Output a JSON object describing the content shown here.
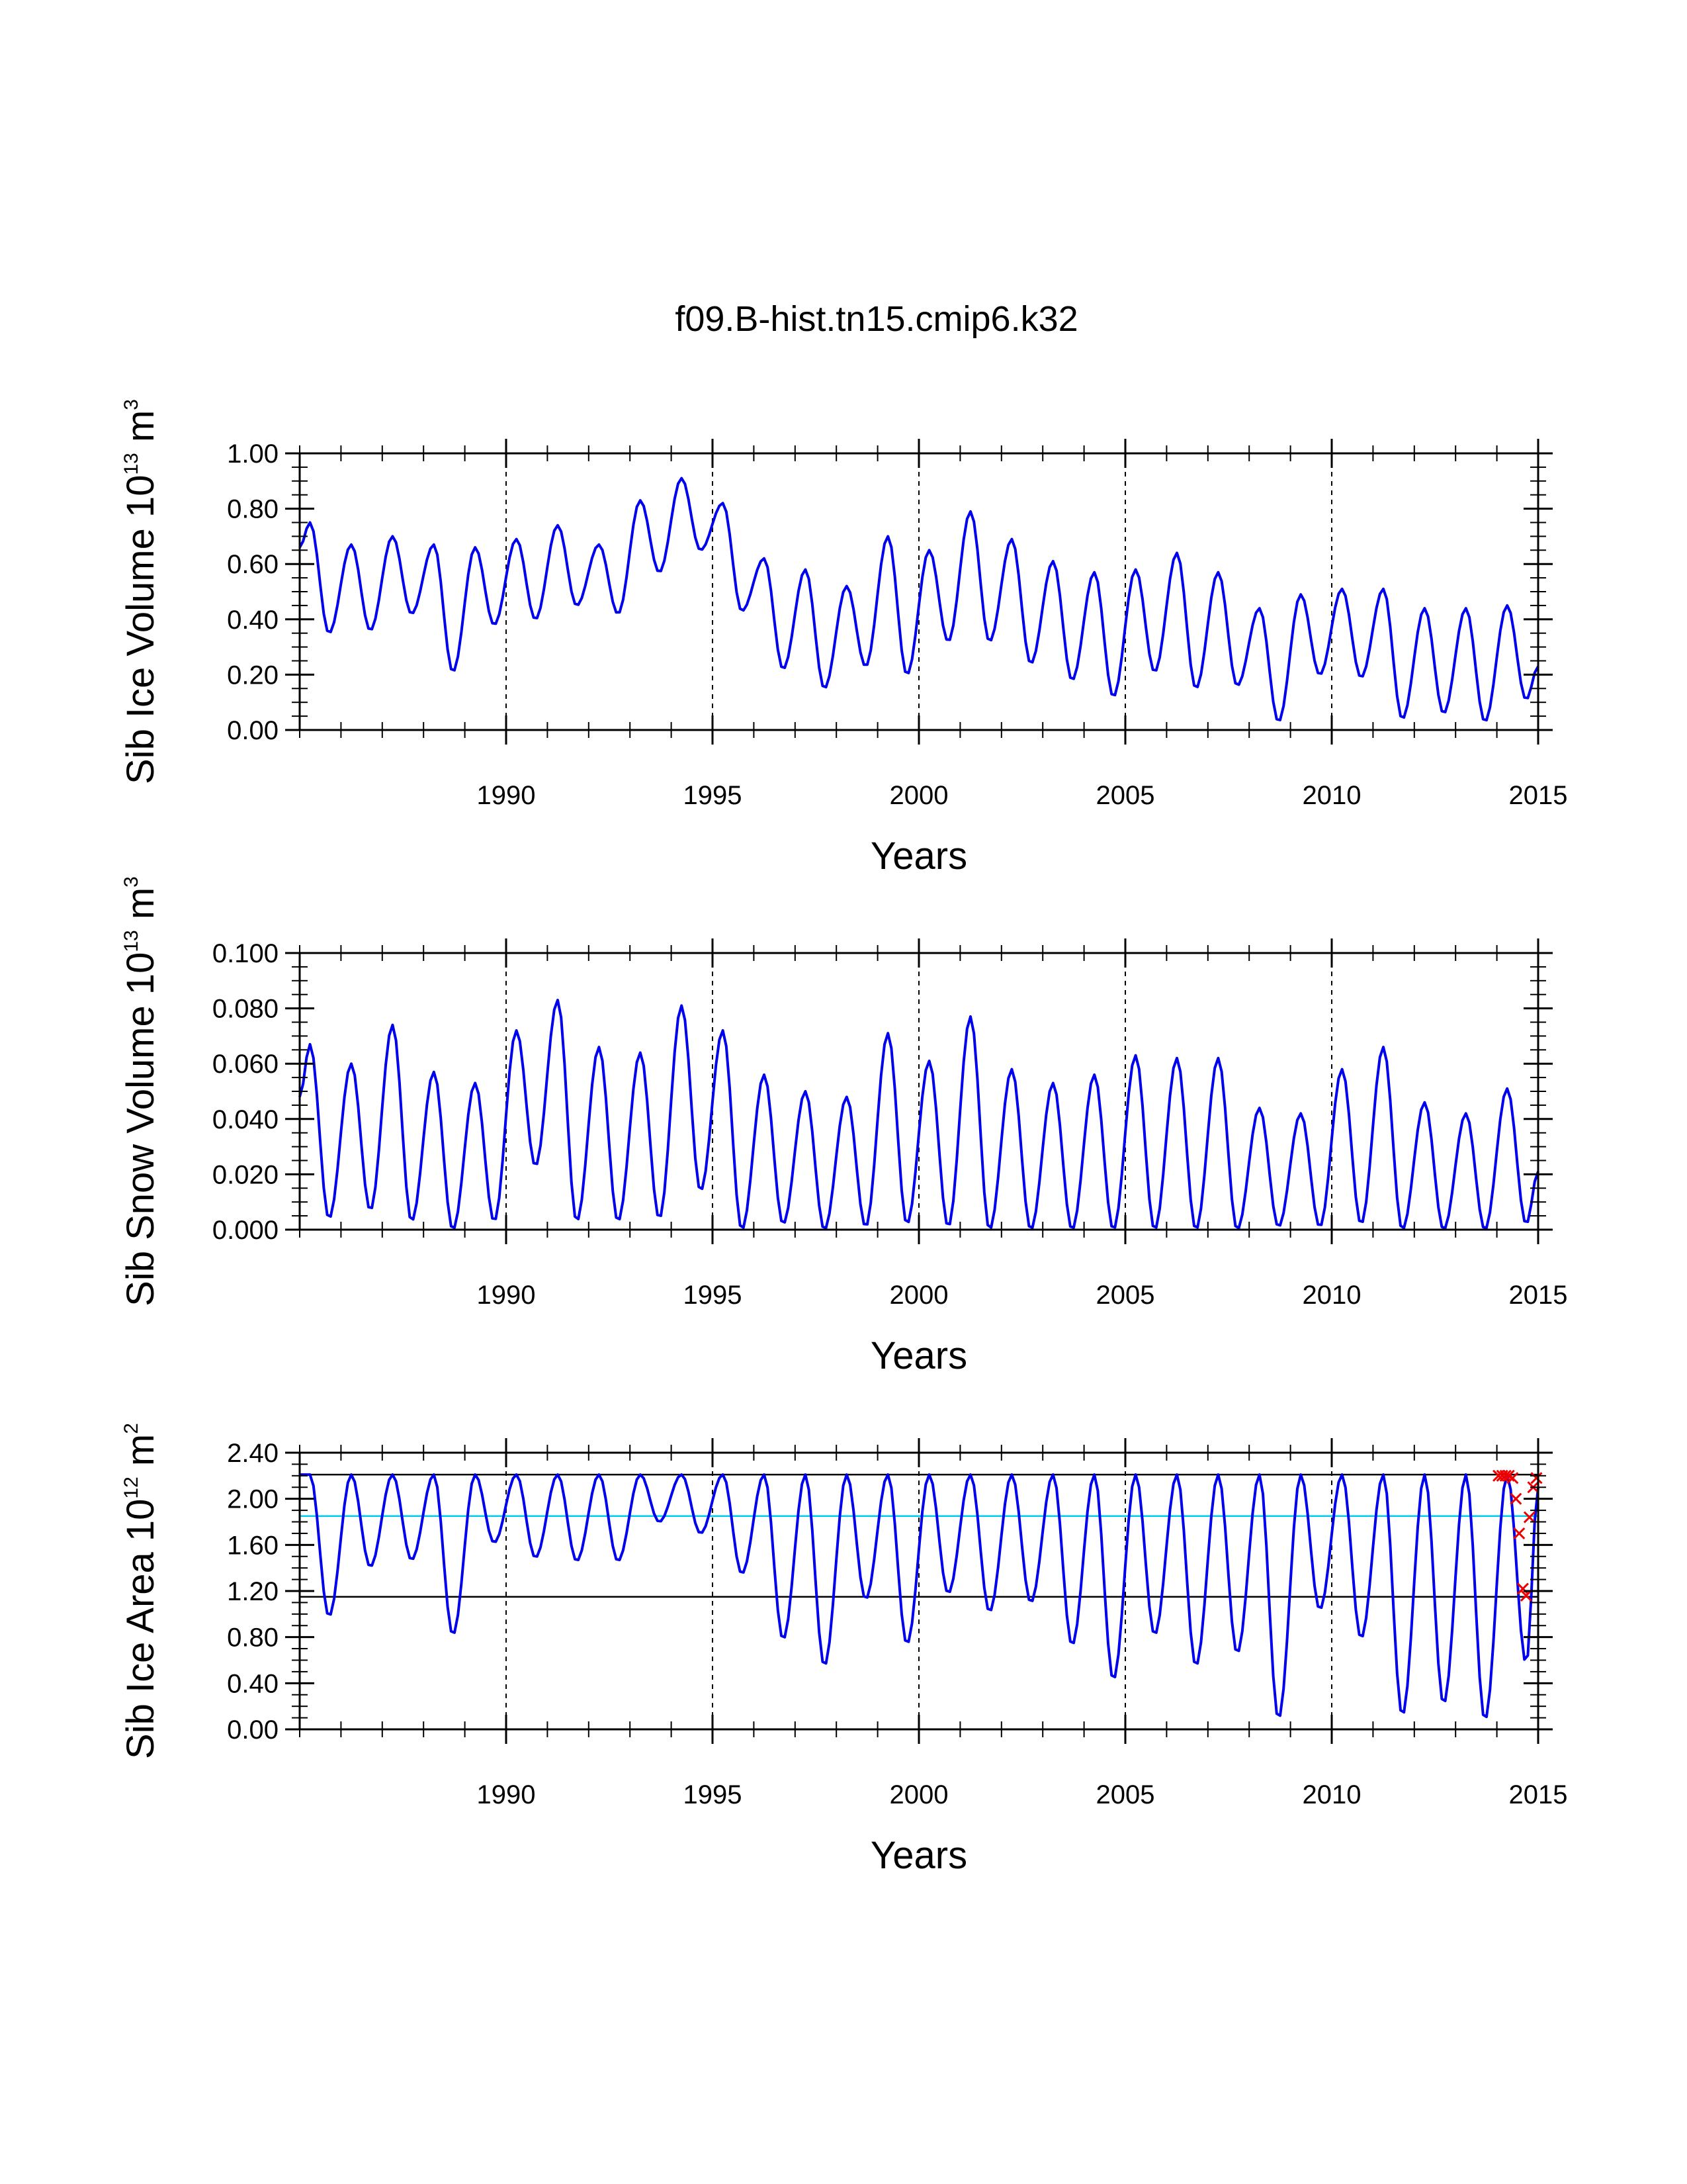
{
  "figure_title": "f09.B-hist.tn15.cmip6.k32",
  "colors": {
    "series": "#0000ee",
    "mean_line": "#00ccee",
    "ref_line": "#000000",
    "markers": "#ee0000",
    "axis": "#000000"
  },
  "chart_data": [
    {
      "id": "ice-volume",
      "type": "line",
      "title": "",
      "ylabel": {
        "prefix": "Sib Ice Volume 10",
        "exp": "13",
        "unit": " m",
        "unit_exp": "3"
      },
      "xlabel": "Years",
      "xlim": [
        1985,
        2015
      ],
      "ylim": [
        0,
        1
      ],
      "y_ticks": [
        0,
        0.2,
        0.4,
        0.6,
        0.8,
        1.0
      ],
      "y_tick_labels": [
        "0.00",
        "0.20",
        "0.40",
        "0.60",
        "0.80",
        "1.00"
      ],
      "x_ticks": [
        1990,
        1995,
        2000,
        2005,
        2010,
        2015
      ],
      "x_tick_labels": [
        "1990",
        "1995",
        "2000",
        "2005",
        "2010",
        "2015"
      ],
      "grid": "dashed vertical lines at 1990, 1995, 2000, 2005, 2010",
      "start_year": 1985,
      "seasonal_extremes": [
        [
          0.66,
          0.75,
          0.35
        ],
        [
          0.67,
          0.36
        ],
        [
          0.7,
          0.42
        ],
        [
          0.67,
          0.21
        ],
        [
          0.66,
          0.38
        ],
        [
          0.69,
          0.4
        ],
        [
          0.74,
          0.45
        ],
        [
          0.67,
          0.42
        ],
        [
          0.83,
          0.57
        ],
        [
          0.91,
          0.65
        ],
        [
          0.82,
          0.43
        ],
        [
          0.62,
          0.22
        ],
        [
          0.58,
          0.15
        ],
        [
          0.52,
          0.23
        ],
        [
          0.7,
          0.2
        ],
        [
          0.65,
          0.32
        ],
        [
          0.79,
          0.32
        ],
        [
          0.69,
          0.24
        ],
        [
          0.61,
          0.18
        ],
        [
          0.57,
          0.12
        ],
        [
          0.58,
          0.21
        ],
        [
          0.64,
          0.15
        ],
        [
          0.57,
          0.16
        ],
        [
          0.44,
          0.03
        ],
        [
          0.49,
          0.2
        ],
        [
          0.51,
          0.19
        ],
        [
          0.51,
          0.04
        ],
        [
          0.44,
          0.06
        ],
        [
          0.44,
          0.03
        ],
        [
          0.45,
          0.11
        ],
        [
          0.23
        ]
      ]
    },
    {
      "id": "snow-volume",
      "type": "line",
      "title": "",
      "ylabel": {
        "prefix": "Sib Snow Volume 10",
        "exp": "13",
        "unit": " m",
        "unit_exp": "3"
      },
      "xlabel": "Years",
      "xlim": [
        1985,
        2015
      ],
      "ylim": [
        0,
        0.1
      ],
      "y_ticks": [
        0,
        0.02,
        0.04,
        0.06,
        0.08,
        0.1
      ],
      "y_tick_labels": [
        "0.000",
        "0.020",
        "0.040",
        "0.060",
        "0.080",
        "0.100"
      ],
      "x_ticks": [
        1990,
        1995,
        2000,
        2005,
        2010,
        2015
      ],
      "x_tick_labels": [
        "1990",
        "1995",
        "2000",
        "2005",
        "2010",
        "2015"
      ],
      "grid": "dashed vertical lines at 1990, 1995, 2000, 2005, 2010",
      "start_year": 1985,
      "seasonal_extremes": [
        [
          0.048,
          0.067,
          0.004
        ],
        [
          0.06,
          0.007
        ],
        [
          0.074,
          0.003
        ],
        [
          0.057,
          0.0
        ],
        [
          0.053,
          0.003
        ],
        [
          0.072,
          0.023
        ],
        [
          0.083,
          0.003
        ],
        [
          0.066,
          0.003
        ],
        [
          0.064,
          0.004
        ],
        [
          0.081,
          0.014
        ],
        [
          0.072,
          0.0
        ],
        [
          0.056,
          0.002
        ],
        [
          0.05,
          0.0
        ],
        [
          0.048,
          0.001
        ],
        [
          0.071,
          0.002
        ],
        [
          0.061,
          0.001
        ],
        [
          0.077,
          0.0
        ],
        [
          0.058,
          0.0
        ],
        [
          0.053,
          0.0
        ],
        [
          0.056,
          0.0
        ],
        [
          0.063,
          0.0
        ],
        [
          0.062,
          0.0
        ],
        [
          0.062,
          0.0
        ],
        [
          0.044,
          0.001
        ],
        [
          0.042,
          0.001
        ],
        [
          0.058,
          0.002
        ],
        [
          0.066,
          0.0
        ],
        [
          0.046,
          0.0
        ],
        [
          0.042,
          0.0
        ],
        [
          0.051,
          0.002
        ],
        [
          0.021
        ]
      ]
    },
    {
      "id": "ice-area",
      "type": "line",
      "title": "",
      "ylabel": {
        "prefix": "Sib Ice Area 10",
        "exp": "12",
        "unit": " m",
        "unit_exp": "2"
      },
      "xlabel": "Years",
      "xlim": [
        1985,
        2015
      ],
      "ylim": [
        0,
        2.4
      ],
      "y_ticks": [
        0,
        0.4,
        0.8,
        1.2,
        1.6,
        2.0,
        2.4
      ],
      "y_tick_labels": [
        "0.00",
        "0.40",
        "0.80",
        "1.20",
        "1.60",
        "2.00",
        "2.40"
      ],
      "x_ticks": [
        1990,
        1995,
        2000,
        2005,
        2010,
        2015
      ],
      "x_tick_labels": [
        "1990",
        "1995",
        "2000",
        "2005",
        "2010",
        "2015"
      ],
      "grid": "dashed vertical lines at 1990, 1995, 2000, 2005, 2010",
      "start_year": 1985,
      "seasonal_extremes": [
        [
          2.21,
          2.21,
          0.98
        ],
        [
          2.21,
          1.41
        ],
        [
          2.21,
          1.47
        ],
        [
          2.21,
          0.82
        ],
        [
          2.21,
          1.62
        ],
        [
          2.21,
          1.49
        ],
        [
          2.21,
          1.46
        ],
        [
          2.21,
          1.46
        ],
        [
          2.21,
          1.8
        ],
        [
          2.21,
          1.7
        ],
        [
          2.21,
          1.35
        ],
        [
          2.21,
          0.78
        ],
        [
          2.21,
          0.55
        ],
        [
          2.21,
          1.13
        ],
        [
          2.21,
          0.74
        ],
        [
          2.21,
          1.18
        ],
        [
          2.21,
          1.02
        ],
        [
          2.21,
          1.1
        ],
        [
          2.21,
          0.73
        ],
        [
          2.21,
          0.43
        ],
        [
          2.21,
          0.82
        ],
        [
          2.21,
          0.55
        ],
        [
          2.21,
          0.66
        ],
        [
          2.21,
          0.09
        ],
        [
          2.21,
          1.04
        ],
        [
          2.21,
          0.79
        ],
        [
          2.21,
          0.12
        ],
        [
          2.21,
          0.22
        ],
        [
          2.21,
          0.08
        ],
        [
          2.21,
          0.57
        ],
        [
          2.1
        ]
      ],
      "reference_lines": [
        {
          "name": "upper-reference-line",
          "value": 2.21,
          "color": "#000000"
        },
        {
          "name": "mean-line",
          "value": 1.85,
          "color": "#00ccee"
        },
        {
          "name": "lower-reference-line",
          "value": 1.15,
          "color": "#000000"
        }
      ],
      "markers": {
        "style": "x",
        "points": [
          [
            2014.04,
            2.2
          ],
          [
            2014.13,
            2.2
          ],
          [
            2014.21,
            2.2
          ],
          [
            2014.29,
            2.2
          ],
          [
            2014.38,
            2.18
          ],
          [
            2014.46,
            2.0
          ],
          [
            2014.54,
            1.7
          ],
          [
            2014.63,
            1.22
          ],
          [
            2014.71,
            1.16
          ],
          [
            2014.79,
            1.84
          ],
          [
            2014.88,
            2.1
          ],
          [
            2014.96,
            2.18
          ]
        ]
      }
    }
  ]
}
